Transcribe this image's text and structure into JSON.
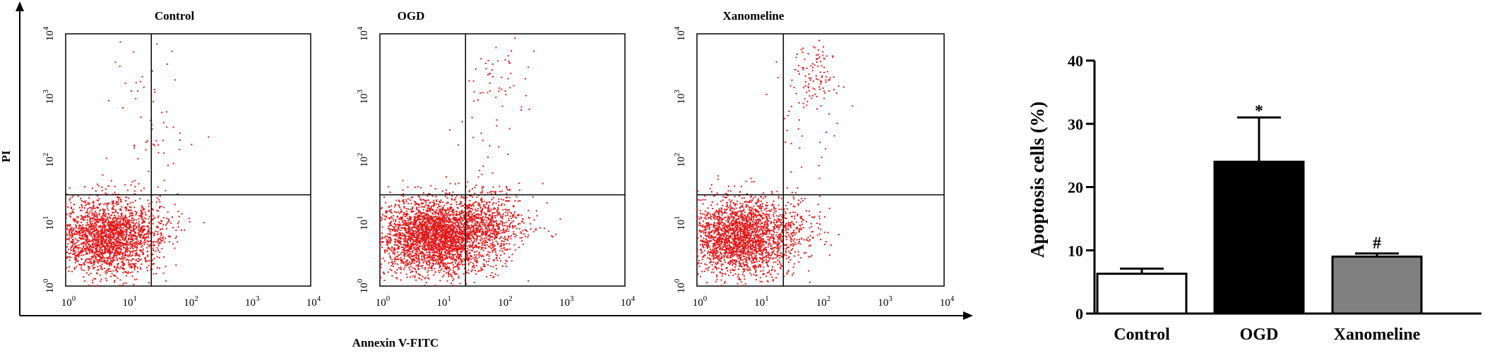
{
  "chart_data": [
    {
      "type": "scatter",
      "title": "Control",
      "xlabel": "Annexin V-FITC",
      "ylabel": "PI",
      "x_ticks": [
        "10",
        "10",
        "10",
        "10",
        "10"
      ],
      "x_tick_exponents": [
        "0",
        "1",
        "2",
        "3",
        "4"
      ],
      "y_ticks": [
        "10",
        "10",
        "10",
        "10",
        "10"
      ],
      "y_tick_exponents": [
        "0",
        "1",
        "2",
        "3",
        "4"
      ],
      "xlim": [
        1,
        10000
      ],
      "ylim": [
        1,
        10000
      ],
      "x_scale": "log",
      "y_scale": "log",
      "quadrant_gate": {
        "x": 25,
        "y": 28
      },
      "point_color": "#e0191b",
      "populations": [
        {
          "n": 2100,
          "center_x": 5,
          "center_y": 6,
          "spread_x": 0.38,
          "spread_y": 0.3
        },
        {
          "n": 130,
          "center_x": 25,
          "center_y": 8,
          "spread_x": 0.25,
          "spread_y": 0.25
        },
        {
          "n": 38,
          "center_x": 32,
          "center_y": 700,
          "spread_x": 0.3,
          "spread_y": 0.6
        },
        {
          "n": 22,
          "center_x": 14,
          "center_y": 300,
          "spread_x": 0.25,
          "spread_y": 0.6
        }
      ]
    },
    {
      "type": "scatter",
      "title": "OGD",
      "xlabel": "Annexin V-FITC",
      "ylabel": "PI",
      "x_ticks": [
        "10",
        "10",
        "10",
        "10",
        "10"
      ],
      "x_tick_exponents": [
        "0",
        "1",
        "2",
        "3",
        "4"
      ],
      "y_ticks": [
        "10",
        "10",
        "10",
        "10",
        "10"
      ],
      "y_tick_exponents": [
        "0",
        "1",
        "2",
        "3",
        "4"
      ],
      "xlim": [
        1,
        10000
      ],
      "ylim": [
        1,
        10000
      ],
      "x_scale": "log",
      "y_scale": "log",
      "quadrant_gate": {
        "x": 25,
        "y": 28
      },
      "point_color": "#e0191b",
      "populations": [
        {
          "n": 3000,
          "center_x": 8,
          "center_y": 6,
          "spread_x": 0.45,
          "spread_y": 0.3
        },
        {
          "n": 600,
          "center_x": 60,
          "center_y": 10,
          "spread_x": 0.35,
          "spread_y": 0.25
        },
        {
          "n": 50,
          "center_x": 100,
          "center_y": 2000,
          "spread_x": 0.25,
          "spread_y": 0.35
        },
        {
          "n": 18,
          "center_x": 50,
          "center_y": 150,
          "spread_x": 0.25,
          "spread_y": 0.5
        }
      ]
    },
    {
      "type": "scatter",
      "title": "Xanomeline",
      "xlabel": "Annexin V-FITC",
      "ylabel": "PI",
      "x_ticks": [
        "10",
        "10",
        "10",
        "10",
        "10"
      ],
      "x_tick_exponents": [
        "0",
        "1",
        "2",
        "3",
        "4"
      ],
      "y_ticks": [
        "10",
        "10",
        "10",
        "10",
        "10"
      ],
      "y_tick_exponents": [
        "0",
        "1",
        "2",
        "3",
        "4"
      ],
      "xlim": [
        1,
        10000
      ],
      "ylim": [
        1,
        10000
      ],
      "x_scale": "log",
      "y_scale": "log",
      "quadrant_gate": {
        "x": 25,
        "y": 28
      },
      "point_color": "#e0191b",
      "populations": [
        {
          "n": 2300,
          "center_x": 5,
          "center_y": 6,
          "spread_x": 0.4,
          "spread_y": 0.3
        },
        {
          "n": 150,
          "center_x": 40,
          "center_y": 8,
          "spread_x": 0.3,
          "spread_y": 0.25
        },
        {
          "n": 110,
          "center_x": 80,
          "center_y": 2000,
          "spread_x": 0.2,
          "spread_y": 0.3
        },
        {
          "n": 25,
          "center_x": 50,
          "center_y": 200,
          "spread_x": 0.25,
          "spread_y": 0.5
        }
      ]
    },
    {
      "type": "bar",
      "categories": [
        "Control",
        "OGD",
        "Xanomeline"
      ],
      "values": [
        6.3,
        24,
        9
      ],
      "errors": [
        0.8,
        7,
        0.5
      ],
      "colors": [
        "#ffffff",
        "#000000",
        "#808080"
      ],
      "annotations": [
        "",
        "*",
        "#"
      ],
      "ylabel": "Apoptosis cells (%)",
      "xlabel": "",
      "ylim": [
        0,
        40
      ],
      "y_ticks": [
        "0",
        "10",
        "20",
        "30",
        "40"
      ],
      "y_tick_values": [
        0,
        10,
        20,
        30,
        40
      ]
    }
  ]
}
